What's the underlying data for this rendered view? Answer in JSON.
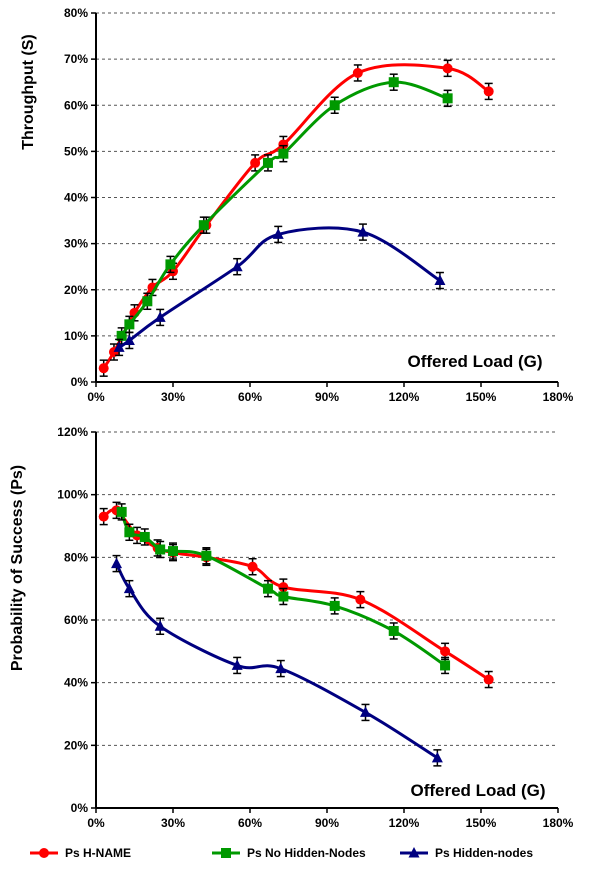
{
  "chart_data": [
    {
      "type": "line",
      "ylabel": "Throughput (S)",
      "xlabel": "Offered Load (G)",
      "xlim": [
        0,
        180
      ],
      "ylim": [
        0,
        80
      ],
      "xticks": [
        "0%",
        "30%",
        "60%",
        "90%",
        "120%",
        "150%",
        "180%"
      ],
      "yticks": [
        "0%",
        "10%",
        "20%",
        "30%",
        "40%",
        "50%",
        "60%",
        "70%",
        "80%"
      ],
      "grid": "horizontal dashed",
      "series": [
        {
          "name": "Ps H-NAME",
          "color": "#ff0000",
          "marker": "circle",
          "x": [
            3,
            7,
            15,
            22,
            30,
            43,
            62,
            73,
            102,
            137,
            153
          ],
          "y": [
            3,
            6.5,
            15,
            20.5,
            24,
            34,
            47.5,
            51.5,
            67,
            68,
            63
          ]
        },
        {
          "name": "Ps No Hidden-Nodes",
          "color": "#009900",
          "marker": "square",
          "x": [
            10,
            13,
            20,
            29,
            42,
            67,
            73,
            93,
            116,
            137
          ],
          "y": [
            10,
            12.5,
            17.5,
            25.5,
            34,
            47.5,
            49.5,
            60,
            65,
            61.5
          ]
        },
        {
          "name": "Ps Hidden-nodes",
          "color": "#000080",
          "marker": "triangle",
          "x": [
            9,
            13,
            25,
            55,
            71,
            104,
            134
          ],
          "y": [
            7.5,
            9,
            14,
            25,
            32,
            32.5,
            22
          ]
        }
      ]
    },
    {
      "type": "line",
      "ylabel": "Probability of Success (Ps)",
      "xlabel": "Offered Load (G)",
      "xlim": [
        0,
        180
      ],
      "ylim": [
        0,
        120
      ],
      "xticks": [
        "0%",
        "30%",
        "60%",
        "90%",
        "120%",
        "150%",
        "180%"
      ],
      "yticks": [
        "0%",
        "20%",
        "40%",
        "60%",
        "80%",
        "100%",
        "120%"
      ],
      "grid": "horizontal dashed",
      "legend": "bottom",
      "series": [
        {
          "name": "Ps H-NAME",
          "color": "#ff0000",
          "marker": "circle",
          "x": [
            3,
            8,
            16,
            24,
            30,
            43,
            61,
            73,
            103,
            136,
            153
          ],
          "y": [
            93,
            95,
            87,
            83,
            81.5,
            80,
            77,
            70.5,
            66.5,
            50,
            41
          ]
        },
        {
          "name": "Ps No Hidden-Nodes",
          "color": "#009900",
          "marker": "square",
          "x": [
            10,
            13,
            19,
            25,
            30,
            43,
            67,
            73,
            93,
            116,
            136
          ],
          "y": [
            94.5,
            88,
            86.5,
            82.5,
            82,
            80.5,
            70,
            67.5,
            64.5,
            56.5,
            45.5
          ]
        },
        {
          "name": "Ps Hidden-nodes",
          "color": "#000080",
          "marker": "triangle",
          "x": [
            8,
            13,
            25,
            55,
            72,
            105,
            133
          ],
          "y": [
            78,
            70,
            58,
            45.5,
            44.5,
            30.5,
            16
          ]
        }
      ]
    }
  ]
}
